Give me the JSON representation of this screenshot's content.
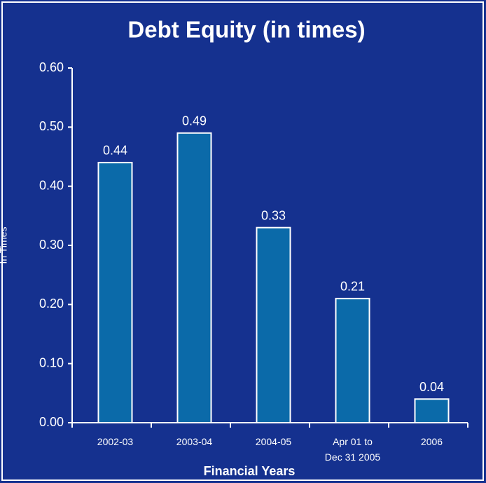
{
  "chart_data": {
    "type": "bar",
    "title": "Debt Equity (in times)",
    "x_label": "Financial Years",
    "y_label": "In Times",
    "categories": [
      "2002-03",
      "2003-04",
      "2004-05",
      "Apr 01 to Dec 31 2005",
      "2006"
    ],
    "values": [
      0.44,
      0.49,
      0.33,
      0.21,
      0.04
    ],
    "color": "#0b6aa9",
    "ylim": [
      0,
      0.6
    ],
    "yticks": [
      {
        "value": 0,
        "label": "0.00"
      },
      {
        "value": 0.1,
        "label": "0.10"
      },
      {
        "value": 0.2,
        "label": "0.20"
      },
      {
        "value": 0.3,
        "label": "0.30"
      },
      {
        "value": 0.4,
        "label": "0.40"
      },
      {
        "value": 0.5,
        "label": "0.50"
      },
      {
        "value": 0.6,
        "label": "0.60"
      }
    ]
  }
}
